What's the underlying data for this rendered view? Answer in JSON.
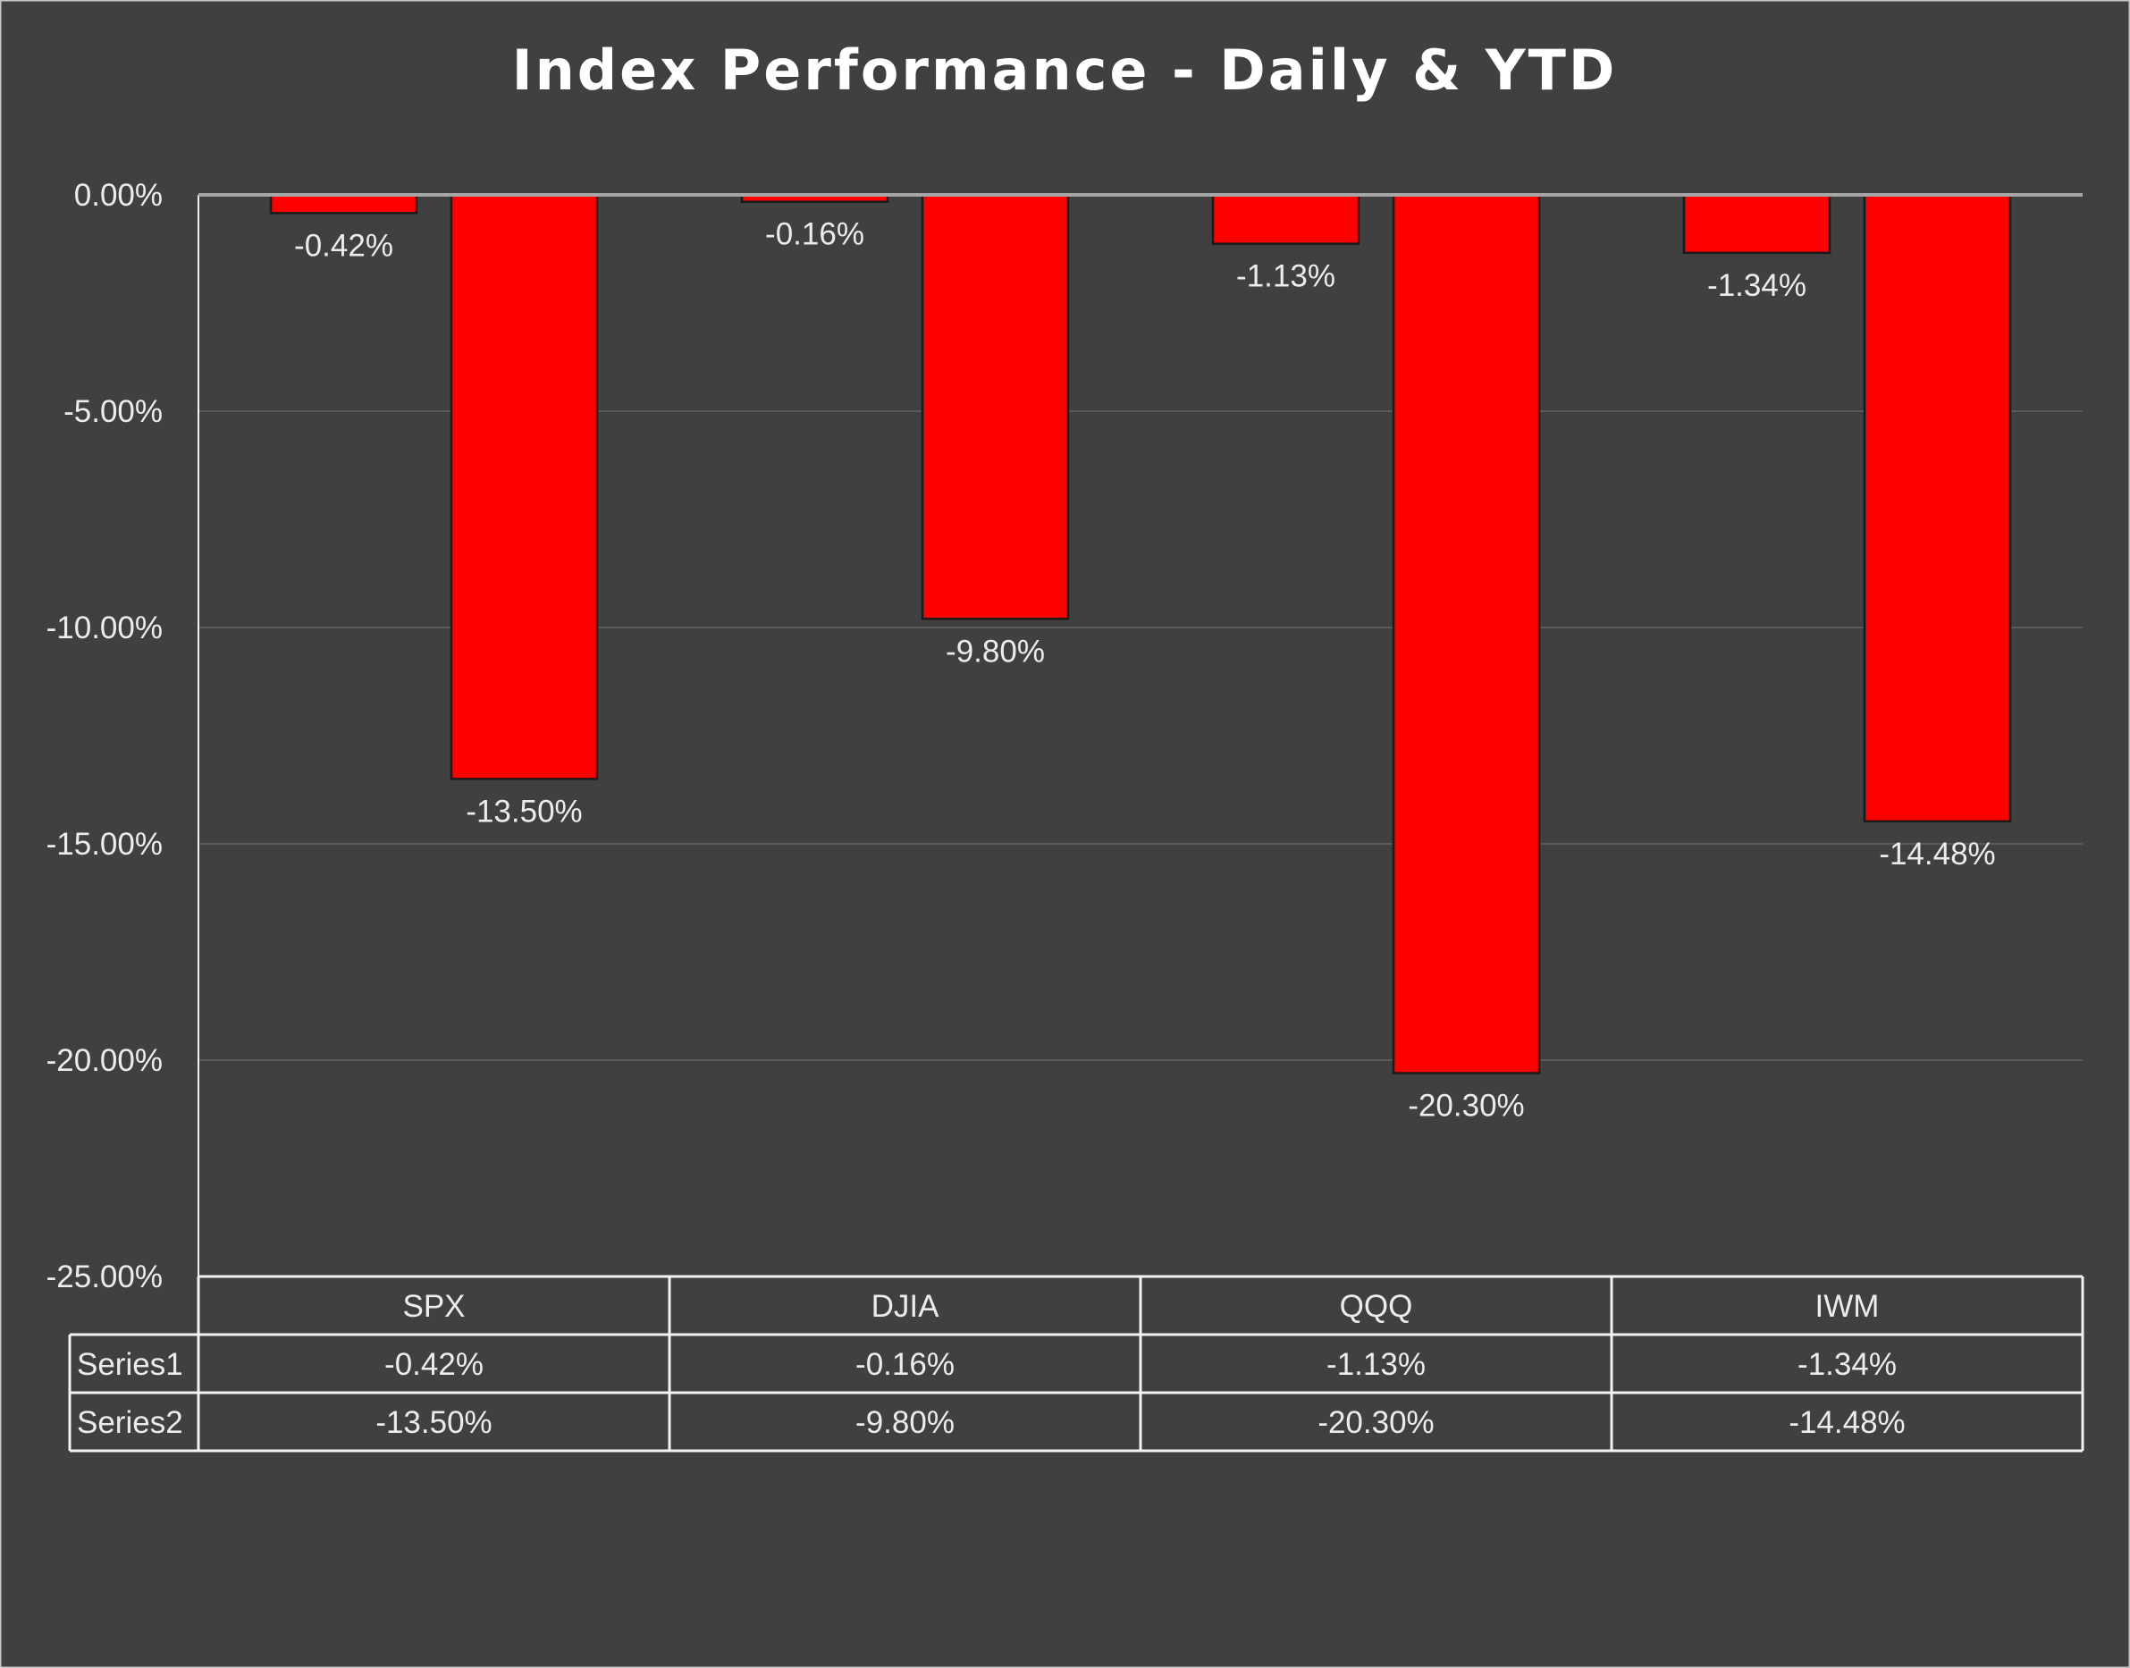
{
  "colors": {
    "background": "#404040",
    "bar": "#ff0000",
    "bar_outline": "#1a1a1a",
    "gridline": "#5a5a5a",
    "zero_line": "#a6a6a6",
    "text": "#ececec",
    "table_border": "#f2f2f2"
  },
  "chart_data": {
    "type": "bar",
    "title": "Index Performance - Daily & YTD",
    "xlabel": "",
    "ylabel": "",
    "categories": [
      "SPX",
      "DJIA",
      "QQQ",
      "IWM"
    ],
    "series": [
      {
        "name": "Series1",
        "values": [
          -0.42,
          -0.16,
          -1.13,
          -1.34
        ],
        "labels": [
          "-0.42%",
          "-0.16%",
          "-1.13%",
          "-1.34%"
        ]
      },
      {
        "name": "Series2",
        "values": [
          -13.5,
          -9.8,
          -20.3,
          -14.48
        ],
        "labels": [
          "-13.50%",
          "-9.80%",
          "-20.30%",
          "-14.48%"
        ]
      }
    ],
    "ylim": [
      -25,
      0
    ],
    "yticks": [
      0,
      -5,
      -10,
      -15,
      -20,
      -25
    ],
    "ytick_labels": [
      "0.00%",
      "-5.00%",
      "-10.00%",
      "-15.00%",
      "-20.00%",
      "-25.00%"
    ],
    "grid": true,
    "data_table": true,
    "legend": "none"
  }
}
